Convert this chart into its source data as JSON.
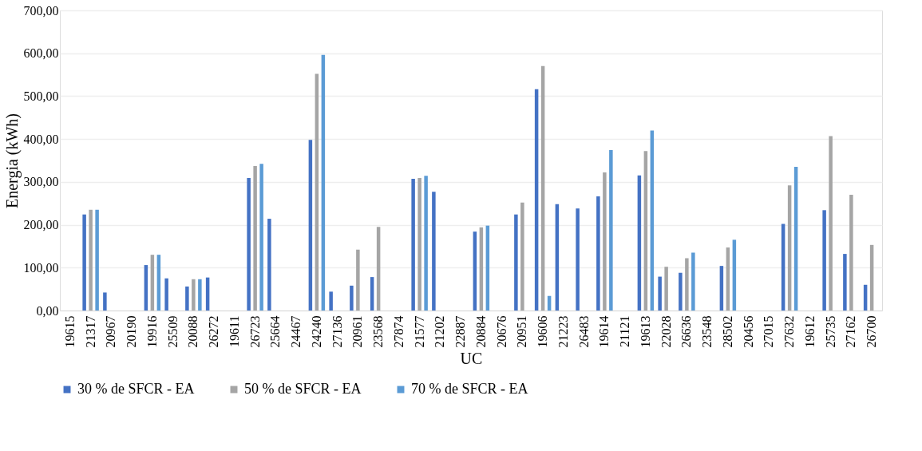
{
  "chart_data": {
    "type": "bar",
    "xlabel": "UC",
    "ylabel": "Energia (kWh)",
    "categories": [
      "19615",
      "21317",
      "20967",
      "20190",
      "19916",
      "25509",
      "20088",
      "26272",
      "19611",
      "26723",
      "25664",
      "24467",
      "24240",
      "27136",
      "20961",
      "23568",
      "27874",
      "21577",
      "21202",
      "22887",
      "20884",
      "20676",
      "20951",
      "19606",
      "21223",
      "26483",
      "19614",
      "21121",
      "19613",
      "22028",
      "26636",
      "23548",
      "28502",
      "20456",
      "27015",
      "27632",
      "19612",
      "25735",
      "27162",
      "26700"
    ],
    "series": [
      {
        "name": "30 % de SFCR - EA",
        "color": "#4472c4",
        "values": [
          null,
          224,
          42,
          null,
          106,
          75,
          56,
          77,
          null,
          309,
          214,
          null,
          398,
          44,
          58,
          78,
          null,
          307,
          277,
          null,
          184,
          null,
          224,
          516,
          248,
          238,
          266,
          null,
          315,
          79,
          88,
          null,
          104,
          null,
          null,
          202,
          null,
          234,
          132,
          60
        ]
      },
      {
        "name": "50 % de SFCR - EA",
        "color": "#a5a5a5",
        "values": [
          null,
          235,
          null,
          null,
          130,
          null,
          73,
          null,
          null,
          337,
          null,
          null,
          552,
          null,
          142,
          195,
          null,
          309,
          null,
          null,
          194,
          null,
          252,
          570,
          null,
          null,
          322,
          null,
          372,
          102,
          122,
          null,
          147,
          null,
          null,
          292,
          null,
          407,
          270,
          153
        ]
      },
      {
        "name": "70 % de SFCR - EA",
        "color": "#5b9bd5",
        "values": [
          null,
          235,
          null,
          null,
          130,
          null,
          73,
          null,
          null,
          342,
          null,
          null,
          596,
          null,
          null,
          null,
          null,
          314,
          null,
          null,
          198,
          null,
          null,
          34,
          null,
          null,
          374,
          null,
          420,
          null,
          135,
          null,
          165,
          null,
          null,
          335,
          null,
          null,
          null,
          null
        ]
      }
    ],
    "ylim": [
      0,
      700
    ],
    "yticks": [
      {
        "value": 0,
        "label": "0,00"
      },
      {
        "value": 100,
        "label": "100,00"
      },
      {
        "value": 200,
        "label": "200,00"
      },
      {
        "value": 300,
        "label": "300,00"
      },
      {
        "value": 400,
        "label": "400,00"
      },
      {
        "value": 500,
        "label": "500,00"
      },
      {
        "value": 600,
        "label": "600,00"
      },
      {
        "value": 700,
        "label": "700,00"
      }
    ],
    "grid": "y",
    "legend": "bottom"
  }
}
